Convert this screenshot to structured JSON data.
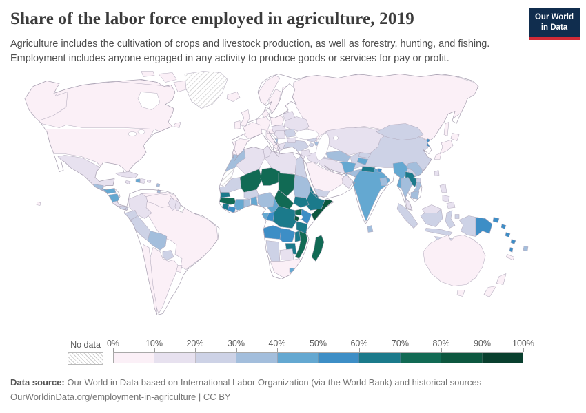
{
  "header": {
    "title": "Share of the labor force employed in agriculture, 2019",
    "subtitle_line1": "Agriculture includes the cultivation of crops and livestock production, as well as forestry, hunting, and fishing.",
    "subtitle_line2": "Employment includes anyone engaged in any activity to produce goods or services for pay or profit.",
    "logo_line1": "Our World",
    "logo_line2": "in Data",
    "logo_bg": "#102d4e",
    "logo_accent": "#d12b37"
  },
  "legend": {
    "no_data_label": "No data",
    "tick_labels": [
      "0%",
      "10%",
      "20%",
      "30%",
      "40%",
      "50%",
      "60%",
      "70%",
      "80%",
      "90%",
      "100%"
    ]
  },
  "footer": {
    "source_label": "Data source:",
    "source_text": " Our World in Data based on International Labor Organization (via the World Bank) and historical sources",
    "url_line": "OurWorldinData.org/employment-in-agriculture | CC BY"
  },
  "chart_data": {
    "type": "choropleth",
    "title": "Share of the labor force employed in agriculture",
    "year": 2019,
    "unit": "% of labor force",
    "legend_position": "bottom",
    "palette": [
      "#fbf0f7",
      "#e7e1ef",
      "#cdd2e6",
      "#a3bedc",
      "#64a8d1",
      "#3d8ec6",
      "#1b7a8b",
      "#116a54",
      "#0d573f",
      "#093f2e"
    ],
    "bin_ranges": [
      "0-10%",
      "10-20%",
      "20-30%",
      "30-40%",
      "40-50%",
      "50-60%",
      "60-70%",
      "70-80%",
      "80-90%",
      "90-100%"
    ],
    "no_data_regions": [
      "greenland",
      "westernsahara",
      "frenchguiana"
    ],
    "regions": {
      "canada": 0,
      "usa": 0,
      "mexico": 1,
      "guatemala": 3,
      "elsalvador": 3,
      "honduras": 4,
      "nicaragua": 4,
      "costarica": 1,
      "panama": 2,
      "cuba": 1,
      "jamaica": 1,
      "haiti": 4,
      "dominicanrep": 1,
      "puertorico": 1,
      "lesserantilles": 3,
      "greenland": null,
      "colombia": 1,
      "venezuela": 0,
      "guyana": 1,
      "suriname": 1,
      "frenchguiana": null,
      "ecuador": 2,
      "peru": 2,
      "bolivia": 3,
      "brazil": 0,
      "paraguay": 2,
      "uruguay": 0,
      "argentina": 0,
      "chile": 0,
      "iceland": 0,
      "uk": 0,
      "ireland": 0,
      "norway": 0,
      "sweden": 0,
      "finland": 0,
      "denmark": 0,
      "germany": 0,
      "france": 0,
      "spain": 0,
      "portugal": 0,
      "italy": 0,
      "alpine": 0,
      "poland": 0,
      "czechia-hungary": 1,
      "balkans": 1,
      "albania": 3,
      "greece": 1,
      "bulgaria": 1,
      "romania": 2,
      "ukraine": 1,
      "belarus": 1,
      "baltics": 0,
      "russia": 0,
      "kazakhstan": 1,
      "uzbekistan": 3,
      "turkmenistan": 2,
      "kyrgyzstan": 2,
      "tajikistan": 4,
      "afghanistan": 4,
      "pakistan": 3,
      "india": 4,
      "nepal": 6,
      "bhutan": 5,
      "bangladesh": 3,
      "srilanka": 3,
      "china": 2,
      "mongolia": 2,
      "northkorea": 5,
      "southkorea": 0,
      "japan": 0,
      "taiwan": 1,
      "turkey": 2,
      "georgia": 2,
      "azerbaijan": 3,
      "armenia": 2,
      "syria": 1,
      "iraq": 1,
      "jordan": 1,
      "saudiarabia": 0,
      "yemen": 2,
      "oman": 1,
      "iran": 1,
      "myanmar": 4,
      "thailand": 3,
      "laos": 6,
      "vietnam": 3,
      "cambodia": 3,
      "malaysia": 1,
      "indonesia": 2,
      "philippines": 1,
      "papuanewguinea": 5,
      "solomonislands": 5,
      "vanuatu": 5,
      "fiji": 3,
      "newcaledonia": 0,
      "australia": 0,
      "newzealand": 0,
      "morocco": 3,
      "westernsahara": null,
      "algeria": 1,
      "tunisia": 1,
      "libya": 1,
      "egypt": 2,
      "mauritania": 2,
      "mali": 7,
      "burkinafaso": 2,
      "niger": 7,
      "chad": 7,
      "sudan": 3,
      "eritrea": 6,
      "ethiopia": 6,
      "somalia": 8,
      "southsudan": 6,
      "centralafricanrepublic": 7,
      "nigeria": 3,
      "cameroon": 4,
      "benin": 4,
      "ghana": 3,
      "ivorycoast": 4,
      "liberia": 5,
      "sierraleone": 6,
      "guinea": 7,
      "senegal": 6,
      "gabon": 4,
      "congo": 5,
      "drc": 6,
      "uganda": 7,
      "kenya": 5,
      "burundi": 8,
      "tanzania": 6,
      "angola": 5,
      "zambia": 5,
      "malawi": 6,
      "mozambique": 7,
      "zimbabwe": 6,
      "namibia": 2,
      "botswana": 1,
      "southafrica": 0,
      "lesotho": 4,
      "madagascar": 7
    }
  }
}
